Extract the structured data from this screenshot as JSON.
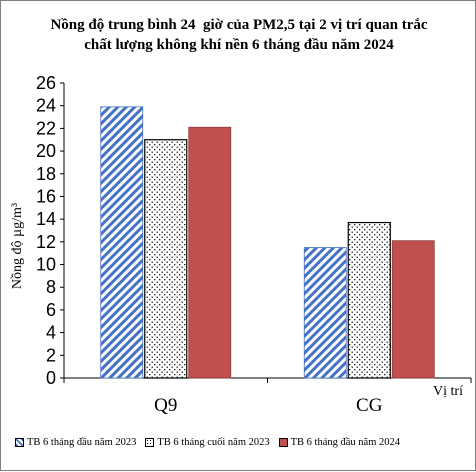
{
  "chart_data": {
    "type": "bar",
    "title_lines": [
      "Nồng độ trung bình 24  giờ của PM2,5 tại 2 vị trí quan trắc",
      "chất lượng không khí nền 6 tháng đầu năm 2024"
    ],
    "xlabel": "Vị trí",
    "ylabel": "Nồng độ µg/m³",
    "categories": [
      "Q9",
      "CG"
    ],
    "series": [
      {
        "name": "TB 6 tháng đầu năm 2023",
        "values": [
          23.9,
          11.5
        ],
        "color": "#4472c4",
        "pattern": "diagonal-stripes"
      },
      {
        "name": "TB 6 tháng cuối năm 2023",
        "values": [
          21.0,
          13.7
        ],
        "color": "#000000",
        "pattern": "dots"
      },
      {
        "name": "TB 6 tháng đầu năm 2024",
        "values": [
          22.1,
          12.1
        ],
        "color": "#c0504d",
        "pattern": "solid"
      }
    ],
    "ylim": [
      0,
      26
    ],
    "yticks": [
      0,
      2,
      4,
      6,
      8,
      10,
      12,
      14,
      16,
      18,
      20,
      22,
      24,
      26
    ],
    "grid": false,
    "legend_position": "bottom"
  }
}
